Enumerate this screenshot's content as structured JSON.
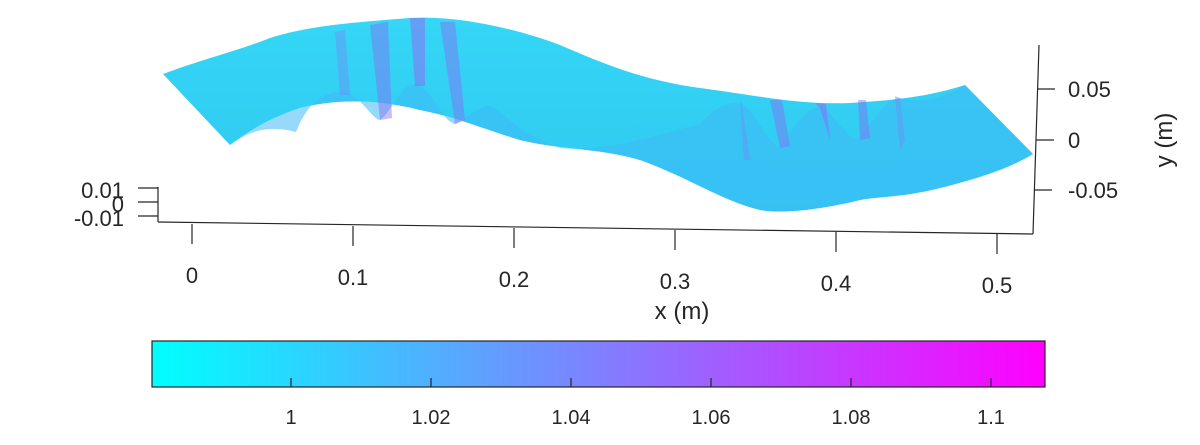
{
  "chart_data": {
    "type": "surface",
    "colormap": "cool",
    "view": "3d",
    "xlabel": "x (m)",
    "ylabel": "y (m)",
    "zlabel": "",
    "x_ticks": [
      "0",
      "0.1",
      "0.2",
      "0.3",
      "0.4",
      "0.5"
    ],
    "y_ticks": [
      "0.05",
      "0",
      "-0.05"
    ],
    "z_ticks": [
      "0.01",
      "0",
      "-0.01"
    ],
    "colorbar": {
      "orientation": "horizontal",
      "location": "bottom",
      "ticks": [
        "1",
        "1.02",
        "1.04",
        "1.06",
        "1.08",
        "1.1"
      ],
      "colors": [
        "#00ffff",
        "#ff00ff"
      ]
    },
    "surface": {
      "x_range": [
        -0.02,
        0.52
      ],
      "description_color_range": [
        0.99,
        1.11
      ]
    }
  }
}
